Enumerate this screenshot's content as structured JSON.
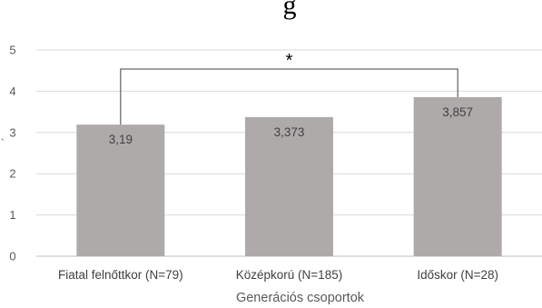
{
  "chart_data": {
    "type": "bar",
    "title_fragment": "g",
    "categories": [
      "Fiatal felnőttkor (N=79)",
      "Középkorú (N=185)",
      "Időskor (N=28)"
    ],
    "values": [
      3.19,
      3.373,
      3.857
    ],
    "value_labels": [
      "3,19",
      "3,373",
      "3,857"
    ],
    "xlabel": "Generációs csoportok",
    "ylabel": "",
    "ylim": [
      0,
      5
    ],
    "yticks": [
      "0",
      "1",
      "2",
      "3",
      "4",
      "5"
    ],
    "grid": true,
    "legend": "none",
    "bar_color": "#aeaaaa",
    "significance": {
      "from": 0,
      "to": 2,
      "label": "*"
    },
    "stray_mark": "ˎ"
  }
}
